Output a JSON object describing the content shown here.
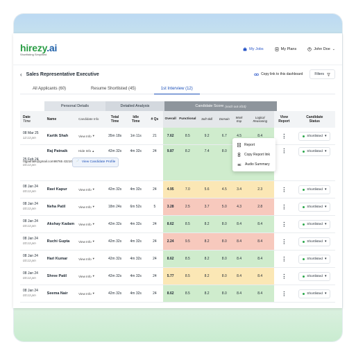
{
  "brand": {
    "name_part1": "hirezy",
    "name_part2": ".ai",
    "tagline": "Shortlisting Simplified"
  },
  "nav": {
    "my_jobs": "My Jobs",
    "my_plans": "My Plans",
    "user": "John Doe"
  },
  "page": {
    "title": "Sales Representative Executive",
    "copy_link": "Copy link to this dashboard",
    "filters": "Filters"
  },
  "tabs": [
    "All Applicants (60)",
    "Resume Shortlisted (45)",
    "1st Interview (12)"
  ],
  "groups": {
    "personal": "Personal Details",
    "detailed": "Detailed Analysis",
    "score": "Candidate Score",
    "score_note": "(each out of10)"
  },
  "headers": {
    "date": "Date",
    "time": "Time",
    "name": "Name",
    "candidate_info": "Candidate Info",
    "total_time_1": "Total",
    "total_time_2": "Time",
    "idle_time_1": "Idle",
    "idle_time_2": "Time",
    "qs": "# Qs",
    "overall": "Overall",
    "functional": "Functional",
    "soft_skill": "Soft skill",
    "domain": "Domain",
    "work_exp_1": "Work",
    "work_exp_2": "Exp",
    "logical_1": "Logical",
    "logical_2": "Reasoning",
    "view_report_1": "View",
    "view_report_2": "Report",
    "candidate_status_1": "Candidate",
    "candidate_status_2": "Status"
  },
  "rows": [
    {
      "date": "08 Mar 25",
      "time": "12:13 pm",
      "name": "Kartik Shah",
      "info": "View Info",
      "total": "35m 18s",
      "idle": "1m 11s",
      "qs": "21",
      "overall": "7.62",
      "functional": "8.5",
      "soft": "9.2",
      "domain": "6.7",
      "work": "4.5",
      "logic": "8.4",
      "color": "green",
      "status": "Shortlisted"
    },
    {
      "date": "25 Feb 24",
      "time": "03:13 pm",
      "name": "Raj Patnaik",
      "info": "Hide Info",
      "email": "rajpatnaik@gmail.com",
      "phone": "98765 43210",
      "profile_btn": "View Candidate Profile",
      "total": "42m 32s",
      "idle": "4m 32s",
      "qs": "24",
      "overall": "9.87",
      "functional": "8.2",
      "soft": "7.4",
      "domain": "8.0",
      "work": "8.4",
      "logic": "8.4",
      "color": "green",
      "status": "Shortlisted"
    },
    {
      "date": "08 Jan 24",
      "time": "03:13 pm",
      "name": "Ravi Kapur",
      "info": "View Info",
      "total": "42m 32s",
      "idle": "4m 32s",
      "qs": "24",
      "overall": "4.95",
      "functional": "7.0",
      "soft": "5.6",
      "domain": "4.5",
      "work": "3.4",
      "logic": "2.3",
      "color": "yellow",
      "status": "Shortlisted"
    },
    {
      "date": "08 Jan 24",
      "time": "03:13 pm",
      "name": "Neha Patil",
      "info": "View Info",
      "total": "18m 24s",
      "idle": "6m 52s",
      "qs": "5",
      "overall": "3.28",
      "functional": "2.5",
      "soft": "3.7",
      "domain": "5.0",
      "work": "4.3",
      "logic": "2.8",
      "color": "red",
      "status": "Shortlisted"
    },
    {
      "date": "08 Jan 24",
      "time": "03:13 pm",
      "name": "Akshay Kadam",
      "info": "View Info",
      "total": "42m 32s",
      "idle": "4m 32s",
      "qs": "24",
      "overall": "8.62",
      "functional": "8.5",
      "soft": "8.2",
      "domain": "8.0",
      "work": "8.4",
      "logic": "8.4",
      "color": "green",
      "status": "Shortlisted"
    },
    {
      "date": "08 Jan 24",
      "time": "03:13 pm",
      "name": "Ruchi Gupta",
      "info": "View Info",
      "total": "42m 32s",
      "idle": "4m 32s",
      "qs": "24",
      "overall": "2.24",
      "functional": "9.5",
      "soft": "8.2",
      "domain": "8.0",
      "work": "8.4",
      "logic": "8.4",
      "color": "red",
      "status": "Shortlisted"
    },
    {
      "date": "08 Jan 24",
      "time": "03:13 pm",
      "name": "Hari Kumar",
      "info": "View Info",
      "total": "42m 32s",
      "idle": "4m 32s",
      "qs": "24",
      "overall": "8.62",
      "functional": "8.5",
      "soft": "8.2",
      "domain": "8.0",
      "work": "8.4",
      "logic": "8.4",
      "color": "green",
      "status": "Shortlisted"
    },
    {
      "date": "08 Jan 24",
      "time": "03:13 pm",
      "name": "Shree Patil",
      "info": "View Info",
      "total": "42m 32s",
      "idle": "4m 32s",
      "qs": "24",
      "overall": "5.77",
      "functional": "8.5",
      "soft": "8.2",
      "domain": "8.0",
      "work": "8.4",
      "logic": "8.4",
      "color": "yellow",
      "status": "Shortlisted"
    },
    {
      "date": "08 Jan 24",
      "time": "03:13 pm",
      "name": "Seema Nair",
      "info": "View Info",
      "total": "42m 32s",
      "idle": "4m 32s",
      "qs": "24",
      "overall": "8.62",
      "functional": "8.5",
      "soft": "8.2",
      "domain": "8.0",
      "work": "8.4",
      "logic": "8.4",
      "color": "green",
      "status": "Shortlisted"
    }
  ],
  "menu": {
    "report": "Report",
    "copy_report": "Copy Report link",
    "audio": "Audio Summary"
  },
  "colors": {
    "green": "#cfeccd",
    "yellow": "#fbe7b5",
    "red": "#f7c9bd",
    "accent": "#1b4fb8",
    "brand_green": "#2a9d45"
  }
}
